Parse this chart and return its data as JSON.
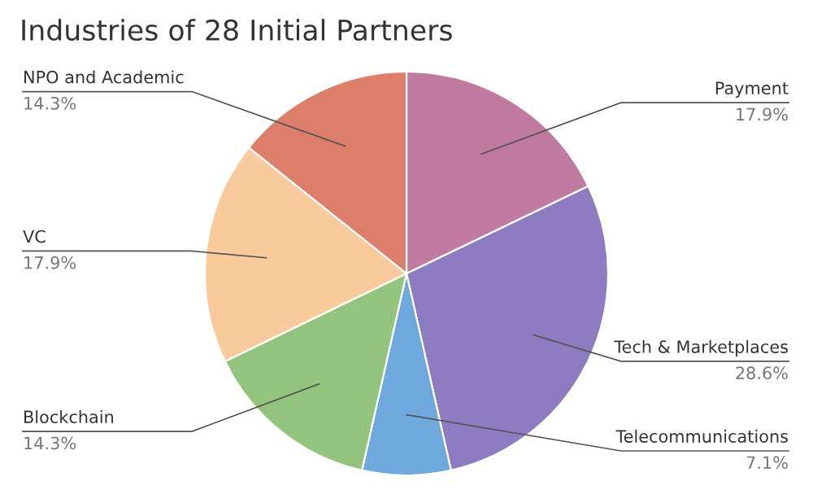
{
  "chart_data": {
    "type": "pie",
    "title": "Industries of 28 Initial Partners",
    "categories": [
      "Payment",
      "Tech & Marketplaces",
      "Telecommunications",
      "Blockchain",
      "VC",
      "NPO and Academic"
    ],
    "values": [
      17.9,
      28.6,
      7.1,
      14.3,
      17.9,
      14.3
    ],
    "value_labels": [
      "17.9%",
      "28.6%",
      "7.1%",
      "14.3%",
      "17.9%",
      "14.3%"
    ],
    "colors": [
      "#c27ba0",
      "#8e7cc3",
      "#6fa8dc",
      "#93c47d",
      "#f9cb9c",
      "#dd7e6b"
    ],
    "legend": false
  }
}
